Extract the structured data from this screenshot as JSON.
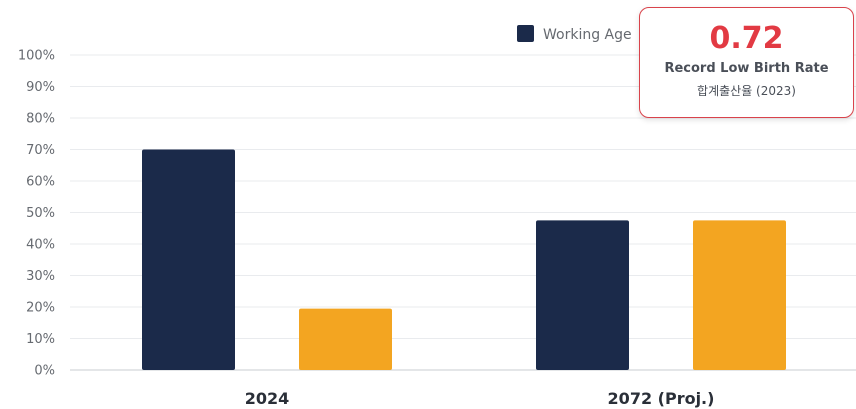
{
  "chart_data": {
    "type": "bar",
    "categories": [
      "2024",
      "2072 (Proj.)"
    ],
    "series": [
      {
        "name": "Working Age",
        "values": [
          70,
          47.5
        ],
        "color": "#1b2a4a"
      },
      {
        "values": [
          19.5,
          47.5
        ],
        "color": "#f3a521"
      }
    ],
    "ylim": [
      0,
      100
    ],
    "yticks": [
      0,
      10,
      20,
      30,
      40,
      50,
      60,
      70,
      80,
      90,
      100
    ],
    "ytick_suffix": "%",
    "grid": true,
    "legend_placement": "top-center"
  },
  "callout": {
    "value": "0.72",
    "title": "Record Low Birth Rate",
    "subtitle": "합계출산율 (2023)",
    "accent_color": "#e23a43"
  }
}
